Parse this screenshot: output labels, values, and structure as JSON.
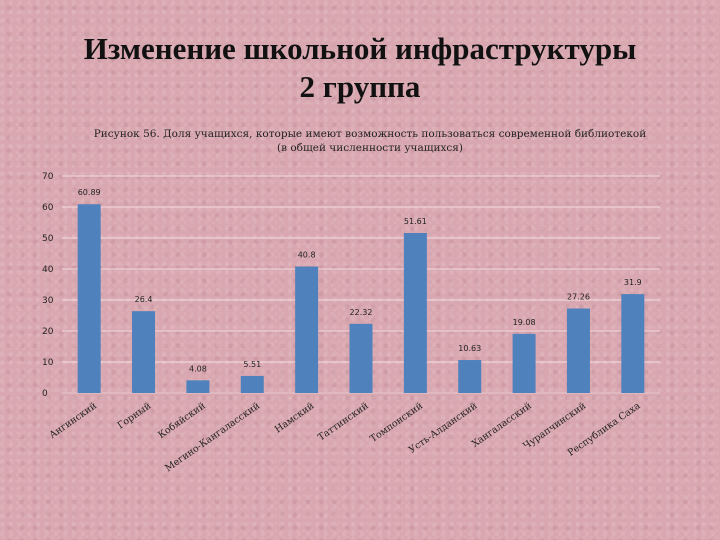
{
  "slide": {
    "title_line1": "Изменение школьной инфраструктуры",
    "title_line2": "2 группа"
  },
  "chart_data": {
    "type": "bar",
    "title_line1": "Рисунок 56. Доля учащихся, которые имеют возможность пользоваться современной библиотекой",
    "title_line2": "(в общей численности учащихся)",
    "categories": [
      "Ангинский",
      "Горный",
      "Кобяйский",
      "Мегино-Кангаласский",
      "Намский",
      "Таттинский",
      "Томпонский",
      "Усть-Алданский",
      "Хангаласский",
      "Чурапчинский",
      "Республика Саха"
    ],
    "values": [
      60.89,
      26.4,
      4.08,
      5.51,
      40.8,
      22.32,
      51.61,
      10.63,
      19.08,
      27.26,
      31.9
    ],
    "value_labels": [
      "60.89",
      "26.4",
      "4.08",
      "5.51",
      "40.8",
      "22.32",
      "51.61",
      "10.63",
      "19.08",
      "27.26",
      "31.9"
    ],
    "ylim": [
      0,
      70
    ],
    "yticks": [
      0,
      10,
      20,
      30,
      40,
      50,
      60,
      70
    ],
    "grid": true,
    "bar_color": "#4f81bd",
    "grid_color": "#f2dce0"
  }
}
